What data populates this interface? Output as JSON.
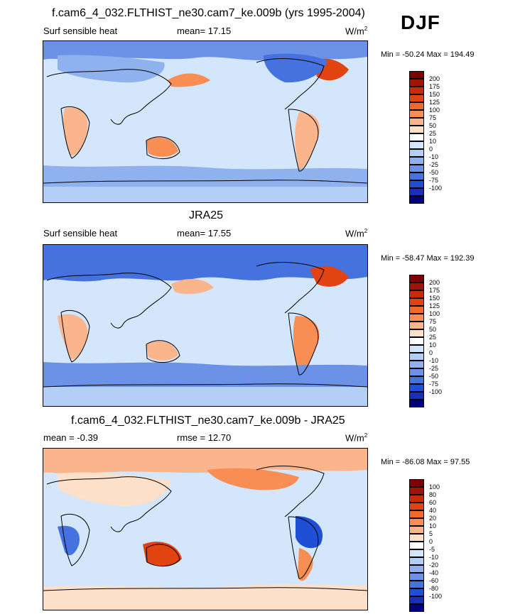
{
  "header": {
    "season": "DJF"
  },
  "panels": [
    {
      "title": "f.cam6_4_032.FLTHIST_ne30.cam7_ke.009b (yrs 1995-2004)",
      "left_label": "Surf sensible heat",
      "center_label": "mean=  17.15",
      "units_base": "W/m",
      "units_sup": "2",
      "minmax": "Min = -50.24 Max = 194.49",
      "colorbar": {
        "labels": [
          "200",
          "175",
          "150",
          "125",
          "100",
          "75",
          "50",
          "25",
          "10",
          "0",
          "-10",
          "-25",
          "-50",
          "-75",
          "-100"
        ],
        "colors": [
          "#7f0000",
          "#a01405",
          "#c92a08",
          "#e24411",
          "#f2692b",
          "#f98e55",
          "#fab58d",
          "#fde0c9",
          "#ffffff",
          "#d3e6fc",
          "#b3cff5",
          "#8fb2ee",
          "#6b92e6",
          "#4572de",
          "#1f4fd6",
          "#1a2fba",
          "#00007f"
        ]
      }
    },
    {
      "title": "JRA25",
      "left_label": "Surf sensible heat",
      "center_label": "mean=  17.55",
      "units_base": "W/m",
      "units_sup": "2",
      "minmax": "Min = -58.47 Max = 192.39",
      "colorbar": {
        "labels": [
          "200",
          "175",
          "150",
          "125",
          "100",
          "75",
          "50",
          "25",
          "10",
          "0",
          "-10",
          "-25",
          "-50",
          "-75",
          "-100"
        ],
        "colors": [
          "#7f0000",
          "#a01405",
          "#c92a08",
          "#e24411",
          "#f2692b",
          "#f98e55",
          "#fab58d",
          "#fde0c9",
          "#ffffff",
          "#d3e6fc",
          "#b3cff5",
          "#8fb2ee",
          "#6b92e6",
          "#4572de",
          "#1f4fd6",
          "#1a2fba",
          "#00007f"
        ]
      }
    },
    {
      "title": "f.cam6_4_032.FLTHIST_ne30.cam7_ke.009b - JRA25",
      "left_label": "mean =  -0.39",
      "center_label": "rmse =  12.70",
      "units_base": "W/m",
      "units_sup": "2",
      "minmax": "Min = -86.08 Max =  97.55",
      "colorbar": {
        "labels": [
          "100",
          "80",
          "60",
          "40",
          "20",
          "10",
          "5",
          "0",
          "-5",
          "-10",
          "-20",
          "-40",
          "-60",
          "-80",
          "-100"
        ],
        "colors": [
          "#7f0000",
          "#a01405",
          "#c92a08",
          "#e24411",
          "#f2692b",
          "#f98e55",
          "#fab58d",
          "#fde0c9",
          "#ffffff",
          "#d3e6fc",
          "#b3cff5",
          "#8fb2ee",
          "#6b92e6",
          "#4572de",
          "#1f4fd6",
          "#1a2fba",
          "#00007f"
        ]
      }
    }
  ]
}
